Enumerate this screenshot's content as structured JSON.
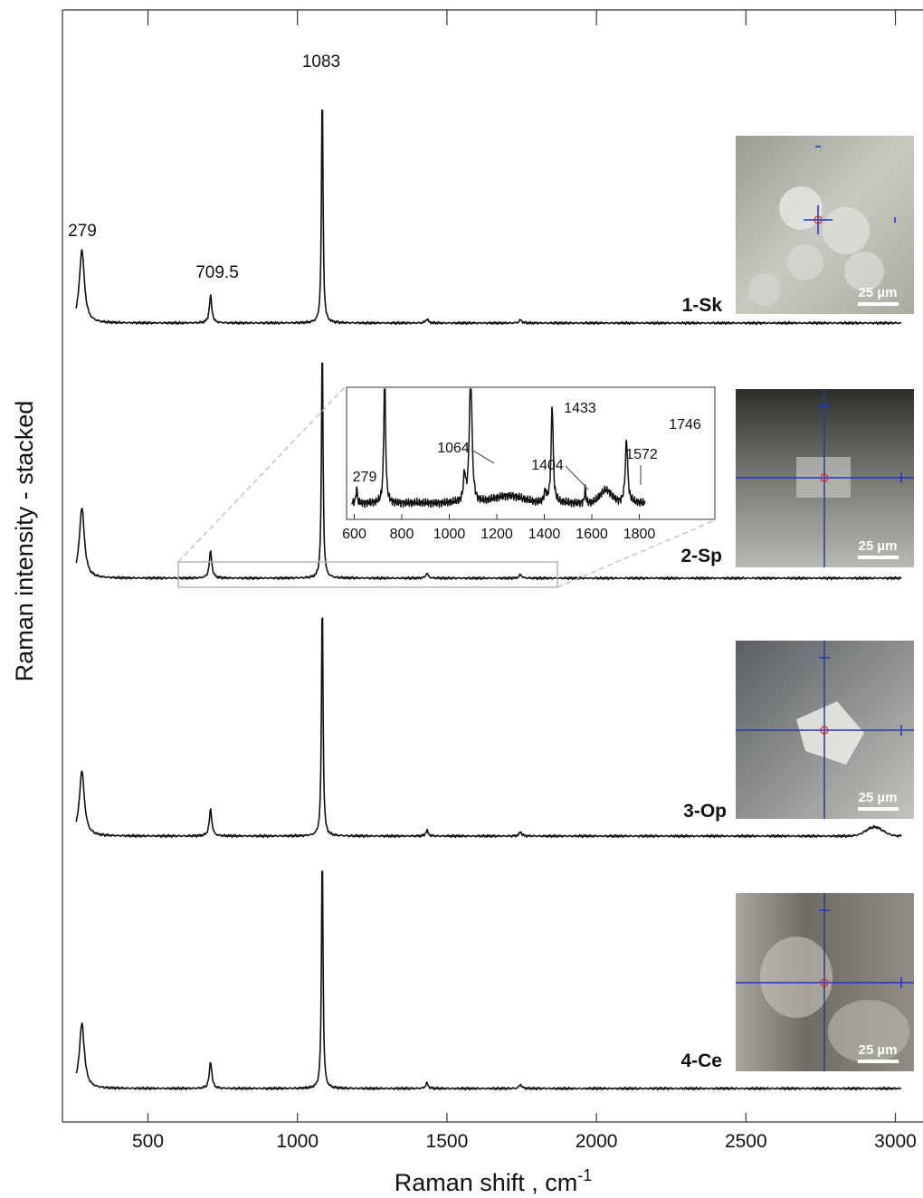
{
  "chart_data": {
    "type": "line",
    "stacked": true,
    "xlabel": "Raman shift , cm",
    "xlabel_superscript": "-1",
    "ylabel": "Raman intensity - stacked",
    "x_ticks": [
      500,
      1000,
      1500,
      2000,
      2500,
      3000
    ],
    "xlim": [
      230,
      3060
    ],
    "series": [
      {
        "name": "1-Sk",
        "label": "1-Sk",
        "peaks": [
          {
            "x": 279,
            "h": 0.27
          },
          {
            "x": 709.5,
            "h": 0.1
          },
          {
            "x": 1083,
            "h": 0.87
          },
          {
            "x": 1433,
            "h": 0.015
          },
          {
            "x": 1746,
            "h": 0.012
          }
        ]
      },
      {
        "name": "2-Sp",
        "label": "2-Sp",
        "peaks": [
          {
            "x": 279,
            "h": 0.26
          },
          {
            "x": 709.5,
            "h": 0.1
          },
          {
            "x": 1083,
            "h": 0.88
          },
          {
            "x": 1433,
            "h": 0.018
          },
          {
            "x": 1746,
            "h": 0.014
          }
        ]
      },
      {
        "name": "3-Op",
        "label": "3-Op",
        "peaks": [
          {
            "x": 279,
            "h": 0.24
          },
          {
            "x": 709.5,
            "h": 0.1
          },
          {
            "x": 1083,
            "h": 0.89
          },
          {
            "x": 1433,
            "h": 0.02
          },
          {
            "x": 1746,
            "h": 0.015
          }
        ]
      },
      {
        "name": "4-Ce",
        "label": "4-Ce",
        "peaks": [
          {
            "x": 279,
            "h": 0.24
          },
          {
            "x": 709.5,
            "h": 0.1
          },
          {
            "x": 1083,
            "h": 0.89
          },
          {
            "x": 1433,
            "h": 0.02
          },
          {
            "x": 1746,
            "h": 0.015
          }
        ]
      }
    ],
    "annotations": [
      "279",
      "709.5",
      "1083"
    ],
    "inset": {
      "series": "2-Sp",
      "x_ticks": [
        600,
        800,
        1000,
        1200,
        1400,
        1600,
        1800
      ],
      "xlim": [
        570,
        1830
      ],
      "peak_labels": [
        "279",
        "1064",
        "1404",
        "1433",
        "1572",
        "1746"
      ]
    },
    "micrographs": [
      {
        "sample": "1-Sk",
        "scale_bar": "25 µm"
      },
      {
        "sample": "2-Sp",
        "scale_bar": "25 µm"
      },
      {
        "sample": "3-Op",
        "scale_bar": "25 µm"
      },
      {
        "sample": "4-Ce",
        "scale_bar": "25 µm"
      }
    ]
  }
}
